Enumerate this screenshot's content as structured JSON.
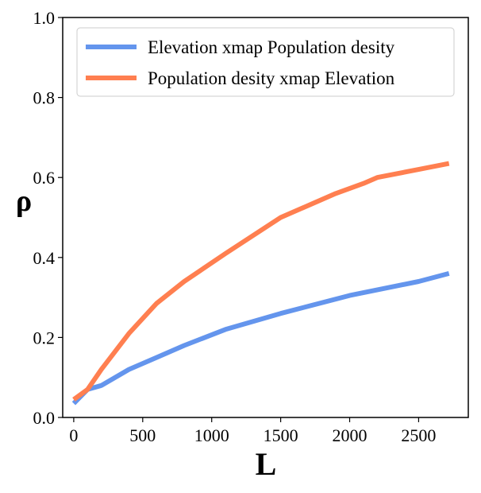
{
  "chart_data": {
    "type": "line",
    "title": "",
    "xlabel": "L",
    "ylabel": "ρ",
    "xlim": [
      -80,
      2860
    ],
    "ylim": [
      0.0,
      1.0
    ],
    "xticks": [
      0,
      500,
      1000,
      1500,
      2000,
      2500
    ],
    "xtick_labels": [
      "0",
      "500",
      "1000",
      "1500",
      "2000",
      "2500"
    ],
    "yticks": [
      0.0,
      0.2,
      0.4,
      0.6,
      0.8,
      1.0
    ],
    "ytick_labels": [
      "0.0",
      "0.2",
      "0.4",
      "0.6",
      "0.8",
      "1.0"
    ],
    "grid": false,
    "legend_position": "top",
    "series": [
      {
        "name": "Elevation xmap Population desity",
        "color": "#6495ed",
        "x": [
          0,
          100,
          200,
          400,
          600,
          800,
          1100,
          1500,
          2000,
          2500,
          2720
        ],
        "y": [
          0.035,
          0.07,
          0.08,
          0.12,
          0.15,
          0.18,
          0.22,
          0.26,
          0.305,
          0.34,
          0.36
        ]
      },
      {
        "name": "Population desity xmap Elevation",
        "color": "#ff7f50",
        "x": [
          0,
          100,
          200,
          400,
          600,
          800,
          1100,
          1500,
          1900,
          2100,
          2200,
          2500,
          2720
        ],
        "y": [
          0.045,
          0.07,
          0.12,
          0.21,
          0.285,
          0.34,
          0.41,
          0.5,
          0.56,
          0.585,
          0.6,
          0.62,
          0.635
        ]
      }
    ]
  }
}
